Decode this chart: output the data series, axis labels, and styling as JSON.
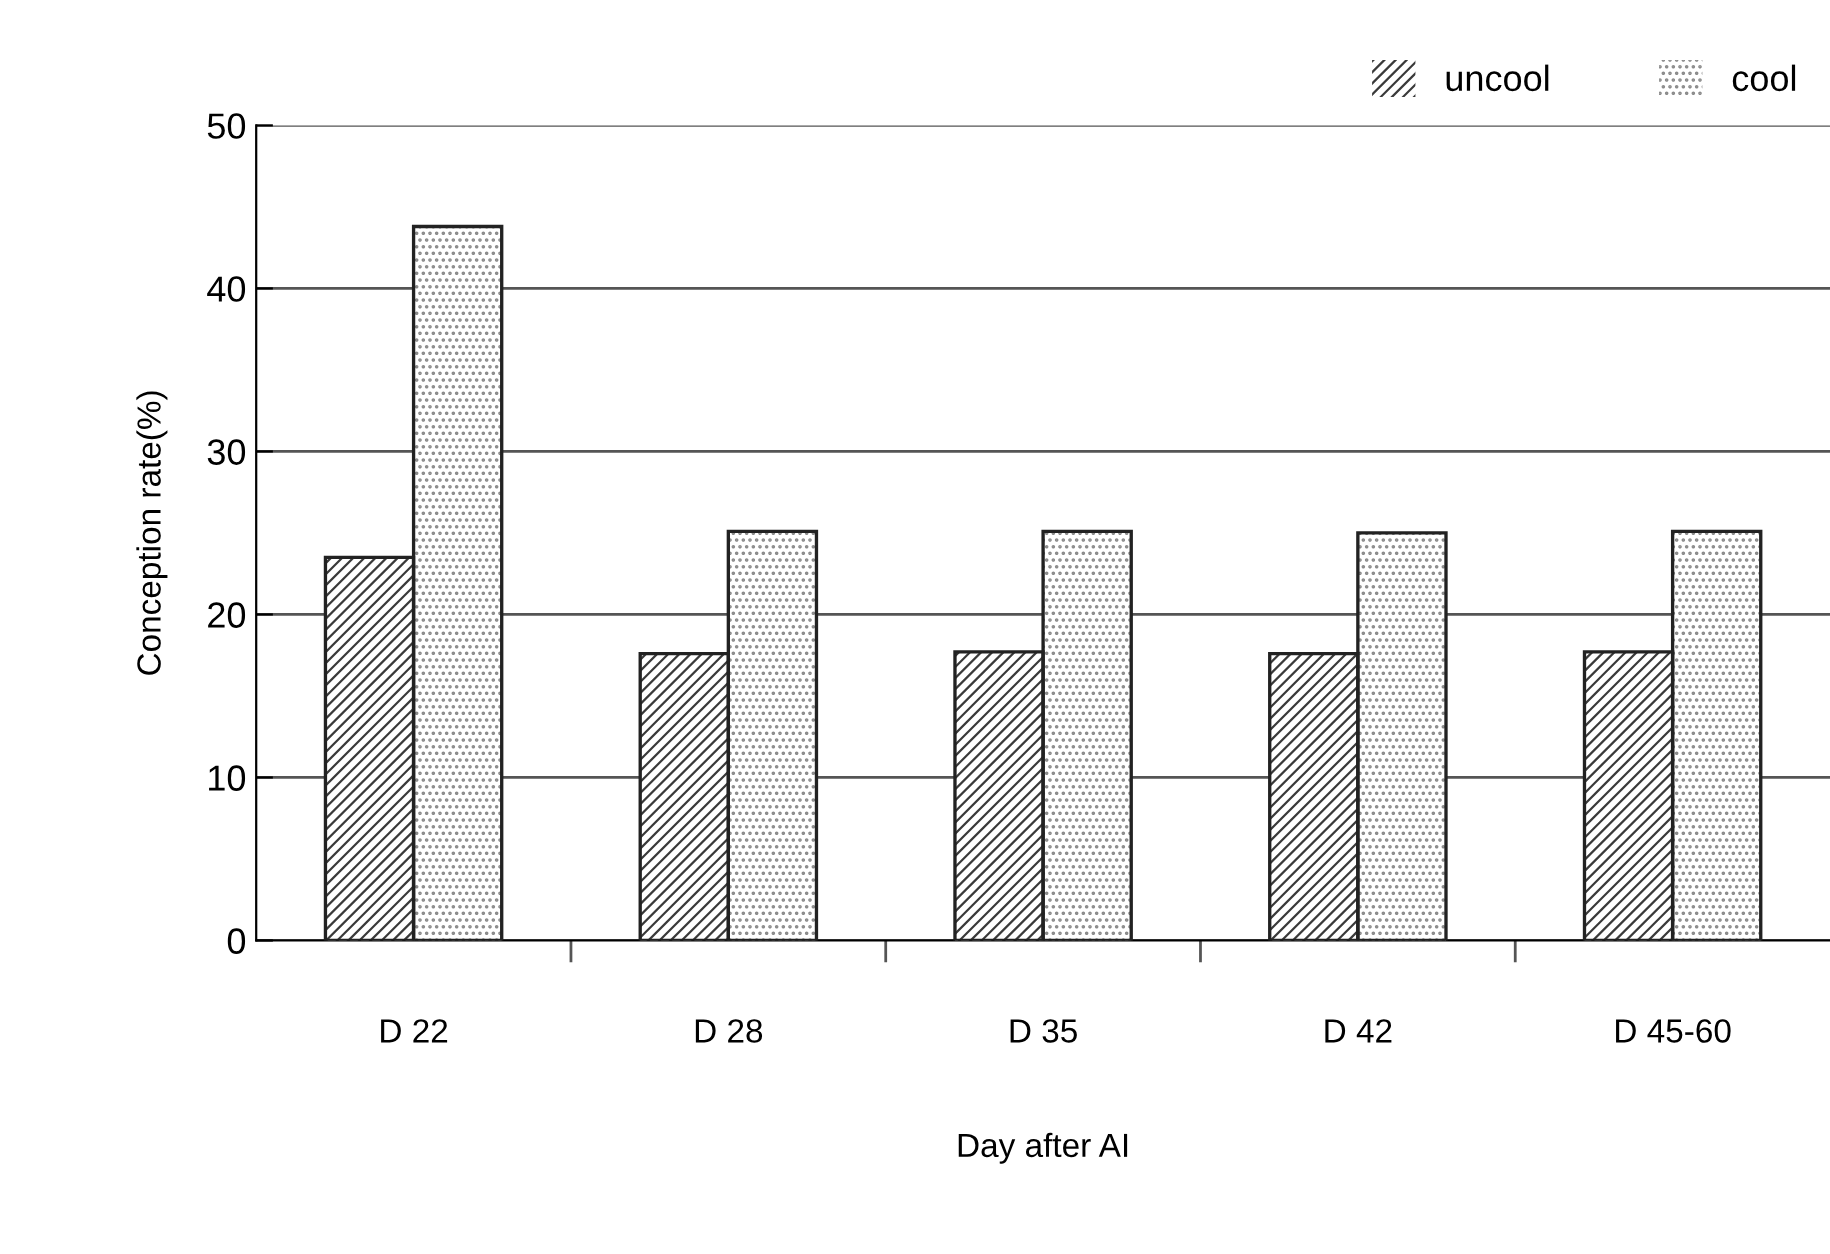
{
  "chart_data": {
    "type": "bar",
    "xlabel": "Day after AI",
    "ylabel": "Conception rate(%)",
    "categories": [
      "D 22",
      "D 28",
      "D 35",
      "D 42",
      "D 45-60"
    ],
    "series": [
      {
        "name": "uncool",
        "color": "#3a3a3a",
        "values": [
          23.5,
          17.6,
          17.7,
          17.6,
          17.7
        ]
      },
      {
        "name": "cool",
        "color": "#8a8a8a",
        "values": [
          43.8,
          25.1,
          25.1,
          25.0,
          25.1
        ]
      }
    ],
    "ylim": [
      0,
      50
    ],
    "yticks": [
      0,
      10,
      20,
      30,
      40,
      50
    ],
    "grid": "y",
    "legend": "top right"
  }
}
